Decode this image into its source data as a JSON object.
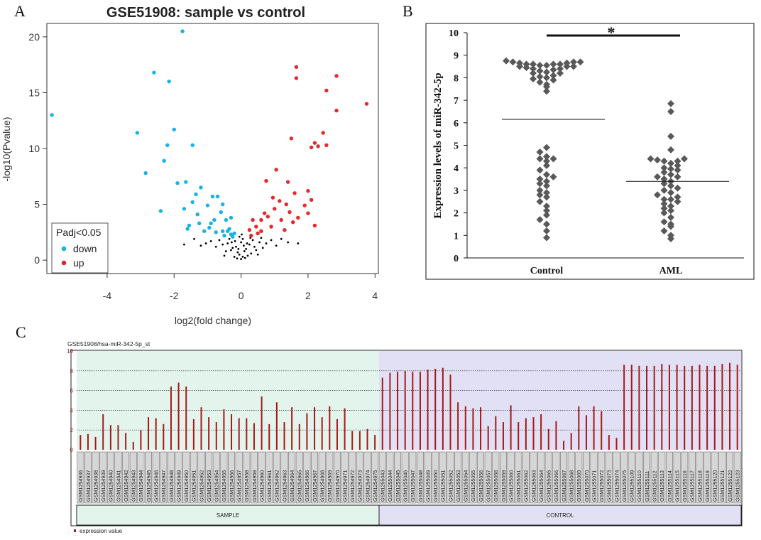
{
  "panels": {
    "a": "A",
    "b": "B",
    "c": "C"
  },
  "colors": {
    "down": "#1ab2e6",
    "up": "#e8272a",
    "ns": "#000000",
    "diamond": "#595959",
    "bar": "#a51919",
    "sample_bg": "#e3f4ed",
    "control_bg": "#e2e0f4"
  },
  "chart_data": [
    {
      "id": "volcano",
      "type": "scatter",
      "title": "GSE51908: sample vs control",
      "xlabel": "log2(fold change)",
      "ylabel": "-log10(Pvalue)",
      "xlim": [
        -5.8,
        4.1
      ],
      "ylim": [
        -1.2,
        21.2
      ],
      "xticks": [
        -4,
        -2,
        0,
        2,
        4
      ],
      "yticks": [
        0,
        5,
        10,
        15,
        20
      ],
      "legend": {
        "title": "Padj<0.05",
        "entries": [
          "down",
          "up"
        ],
        "position": "bottom-left"
      },
      "series": [
        {
          "name": "down",
          "points": [
            [
              -5.65,
              13.0
            ],
            [
              -1.75,
              20.5
            ],
            [
              -2.6,
              16.8
            ],
            [
              -2.15,
              16.0
            ],
            [
              -3.1,
              11.4
            ],
            [
              -2.0,
              11.7
            ],
            [
              -2.2,
              10.3
            ],
            [
              -1.45,
              10.3
            ],
            [
              -2.3,
              8.9
            ],
            [
              -2.85,
              7.8
            ],
            [
              -2.4,
              4.4
            ],
            [
              -1.9,
              6.9
            ],
            [
              -1.65,
              7.0
            ],
            [
              -1.35,
              5.9
            ],
            [
              -1.2,
              6.5
            ],
            [
              -1.0,
              4.9
            ],
            [
              -0.85,
              5.7
            ],
            [
              -0.7,
              5.7
            ],
            [
              -0.55,
              5.0
            ],
            [
              -0.9,
              3.3
            ],
            [
              -0.55,
              2.6
            ],
            [
              -0.5,
              2.2
            ],
            [
              -0.35,
              2.8
            ],
            [
              -0.3,
              2.3
            ],
            [
              -1.7,
              4.6
            ],
            [
              -1.55,
              3.1
            ],
            [
              -1.3,
              4.1
            ],
            [
              -1.1,
              2.6
            ],
            [
              -0.75,
              2.5
            ],
            [
              -0.45,
              3.6
            ],
            [
              -0.3,
              3.8
            ],
            [
              -1.6,
              2.8
            ],
            [
              -0.6,
              4.3
            ],
            [
              -0.95,
              2.9
            ],
            [
              -0.4,
              2.6
            ],
            [
              -1.25,
              3.3
            ],
            [
              -0.8,
              3.6
            ],
            [
              -0.25,
              2.1
            ],
            [
              -0.2,
              2.4
            ],
            [
              -1.45,
              5.2
            ]
          ]
        },
        {
          "name": "up",
          "points": [
            [
              3.75,
              14.0
            ],
            [
              1.65,
              17.3
            ],
            [
              2.85,
              16.5
            ],
            [
              2.55,
              15.2
            ],
            [
              1.65,
              16.3
            ],
            [
              2.85,
              13.4
            ],
            [
              2.2,
              10.5
            ],
            [
              2.55,
              10.3
            ],
            [
              2.3,
              10.2
            ],
            [
              2.1,
              10.1
            ],
            [
              2.45,
              11.4
            ],
            [
              1.5,
              10.9
            ],
            [
              1.05,
              8.1
            ],
            [
              1.4,
              7.0
            ],
            [
              0.75,
              7.1
            ],
            [
              1.6,
              6.0
            ],
            [
              0.95,
              5.6
            ],
            [
              1.35,
              5.0
            ],
            [
              2.0,
              6.2
            ],
            [
              0.3,
              2.2
            ],
            [
              0.45,
              3.0
            ],
            [
              0.6,
              2.6
            ],
            [
              0.8,
              3.9
            ],
            [
              1.0,
              4.6
            ],
            [
              1.2,
              3.6
            ],
            [
              1.45,
              4.3
            ],
            [
              1.7,
              3.8
            ],
            [
              1.9,
              4.9
            ],
            [
              2.1,
              5.4
            ],
            [
              2.2,
              3.1
            ],
            [
              1.55,
              3.4
            ],
            [
              0.35,
              3.6
            ],
            [
              0.5,
              2.4
            ],
            [
              0.7,
              4.2
            ],
            [
              0.9,
              3.0
            ],
            [
              1.3,
              2.7
            ],
            [
              0.25,
              2.7
            ],
            [
              0.6,
              3.6
            ],
            [
              2.0,
              4.2
            ],
            [
              1.15,
              5.3
            ]
          ]
        },
        {
          "name": "not significant",
          "points": [
            [
              0.0,
              0.1
            ],
            [
              0.05,
              0.3
            ],
            [
              -0.05,
              0.5
            ],
            [
              0.1,
              0.8
            ],
            [
              -0.1,
              0.7
            ],
            [
              0.15,
              1.0
            ],
            [
              -0.15,
              1.2
            ],
            [
              0.2,
              0.4
            ],
            [
              -0.2,
              0.3
            ],
            [
              0.25,
              1.4
            ],
            [
              -0.25,
              1.1
            ],
            [
              0.3,
              0.6
            ],
            [
              -0.3,
              0.9
            ],
            [
              0.0,
              1.6
            ],
            [
              0.05,
              1.9
            ],
            [
              -0.05,
              2.1
            ],
            [
              0.4,
              1.2
            ],
            [
              -0.4,
              1.5
            ],
            [
              0.45,
              0.9
            ],
            [
              -0.45,
              0.8
            ],
            [
              0.55,
              1.6
            ],
            [
              -0.55,
              1.4
            ],
            [
              0.6,
              2.0
            ],
            [
              -0.65,
              1.8
            ],
            [
              0.75,
              1.5
            ],
            [
              -0.75,
              1.2
            ],
            [
              0.9,
              1.8
            ],
            [
              -0.9,
              1.7
            ],
            [
              1.05,
              1.3
            ],
            [
              -1.05,
              1.5
            ],
            [
              1.2,
              1.9
            ],
            [
              -1.2,
              1.3
            ],
            [
              1.4,
              1.6
            ],
            [
              -1.4,
              1.9
            ],
            [
              1.7,
              1.5
            ],
            [
              -1.7,
              1.4
            ],
            [
              0.12,
              0.2
            ],
            [
              -0.12,
              0.15
            ],
            [
              0.08,
              1.3
            ],
            [
              -0.08,
              1.0
            ],
            [
              0.35,
              1.8
            ],
            [
              -0.35,
              1.9
            ],
            [
              0.18,
              1.5
            ],
            [
              -0.18,
              1.7
            ],
            [
              0.5,
              0.5
            ],
            [
              -0.5,
              0.4
            ],
            [
              0.02,
              2.3
            ],
            [
              0.28,
              2.0
            ],
            [
              -0.28,
              1.6
            ],
            [
              0.65,
              1.1
            ]
          ]
        }
      ]
    },
    {
      "id": "dotplot",
      "type": "scatter",
      "categories": [
        "Control",
        "AML"
      ],
      "ylabel": "Expression levels of miR-342-5p",
      "ylim": [
        0,
        10
      ],
      "yticks": [
        0,
        1,
        2,
        3,
        4,
        5,
        6,
        7,
        8,
        9,
        10
      ],
      "significance": "*",
      "mean_lines": [
        6.15,
        3.4
      ],
      "series": [
        {
          "name": "Control",
          "values": [
            8.7,
            8.6,
            8.75,
            8.5,
            8.65,
            8.4,
            8.55,
            8.7,
            8.6,
            8.45,
            8.3,
            8.2,
            8.5,
            8.6,
            8.7,
            8.55,
            8.65,
            8.35,
            8.25,
            8.0,
            7.9,
            8.1,
            7.8,
            7.6,
            7.4,
            7.7,
            8.05,
            7.95,
            8.4,
            8.5,
            8.6,
            8.2,
            4.9,
            4.7,
            4.5,
            4.4,
            4.3,
            4.4,
            4.1,
            3.9,
            3.7,
            3.5,
            3.4,
            3.2,
            3.0,
            2.9,
            2.7,
            2.5,
            2.3,
            2.1,
            1.9,
            1.7,
            1.5,
            1.2,
            0.9,
            3.3,
            3.6,
            2.8
          ]
        },
        {
          "name": "AML",
          "values": [
            6.85,
            6.5,
            5.4,
            4.8,
            4.4,
            4.3,
            4.3,
            4.2,
            4.1,
            4.0,
            4.4,
            3.9,
            3.8,
            3.7,
            3.6,
            3.5,
            3.4,
            3.3,
            3.2,
            3.1,
            3.0,
            2.9,
            2.8,
            2.7,
            2.6,
            2.5,
            2.4,
            2.3,
            2.2,
            2.1,
            2.0,
            1.8,
            1.6,
            1.5,
            1.4,
            1.2,
            1.0,
            0.85,
            3.6,
            2.6,
            3.95,
            4.35
          ]
        }
      ]
    },
    {
      "id": "barplot",
      "type": "bar",
      "title": "GSE51908/hsa-miR-342-5p_st",
      "ylim": [
        0,
        10
      ],
      "yticks": [
        0,
        2,
        4,
        6,
        8,
        10
      ],
      "legend": "expression value",
      "groups": [
        {
          "label": "SAMPLE",
          "count": 40
        },
        {
          "label": "CONTROL",
          "count": 48
        }
      ],
      "categories": [
        "GSM1254936",
        "GSM1254937",
        "GSM1254938",
        "GSM1254939",
        "GSM1254940",
        "GSM1254941",
        "GSM1254942",
        "GSM1254943",
        "GSM1254944",
        "GSM1254945",
        "GSM1254946",
        "GSM1254947",
        "GSM1254948",
        "GSM1254949",
        "GSM1254950",
        "GSM1254951",
        "GSM1254952",
        "GSM1254953",
        "GSM1254954",
        "GSM1254955",
        "GSM1254956",
        "GSM1254957",
        "GSM1254958",
        "GSM1254959",
        "GSM1254960",
        "GSM1254961",
        "GSM1254962",
        "GSM1254963",
        "GSM1254964",
        "GSM1254965",
        "GSM1254966",
        "GSM1254967",
        "GSM1254968",
        "GSM1254969",
        "GSM1254970",
        "GSM1254971",
        "GSM1254972",
        "GSM1254973",
        "GSM1254974",
        "GSM1254975",
        "GSM1255043",
        "GSM1255044",
        "GSM1255045",
        "GSM1255046",
        "GSM1255047",
        "GSM1255048",
        "GSM1255049",
        "GSM1255050",
        "GSM1255051",
        "GSM1255052",
        "GSM1255053",
        "GSM1255054",
        "GSM1255055",
        "GSM1255056",
        "GSM1255057",
        "GSM1255058",
        "GSM1255059",
        "GSM1255060",
        "GSM1255061",
        "GSM1255062",
        "GSM1255063",
        "GSM1255064",
        "GSM1255065",
        "GSM1255066",
        "GSM1255067",
        "GSM1255068",
        "GSM1255069",
        "GSM1255070",
        "GSM1255071",
        "GSM1255072",
        "GSM1255073",
        "GSM1255074",
        "GSM1255075",
        "GSM1255109",
        "GSM1255110",
        "GSM1255111",
        "GSM1255112",
        "GSM1255113",
        "GSM1255114",
        "GSM1255115",
        "GSM1255116",
        "GSM1255117",
        "GSM1255118",
        "GSM1255119",
        "GSM1255120",
        "GSM1255121",
        "GSM1255122",
        "GSM1255123"
      ],
      "values": [
        1.5,
        1.6,
        1.3,
        3.6,
        2.5,
        2.5,
        1.7,
        0.8,
        2.0,
        3.3,
        3.2,
        2.6,
        6.4,
        6.8,
        6.4,
        3.1,
        4.3,
        3.3,
        2.8,
        4.1,
        3.6,
        3.2,
        3.2,
        2.7,
        5.4,
        2.6,
        4.8,
        2.8,
        4.3,
        2.6,
        3.7,
        4.3,
        3.3,
        4.4,
        3.1,
        4.2,
        1.9,
        1.9,
        2.1,
        1.5,
        7.3,
        7.8,
        7.9,
        8.0,
        7.9,
        7.9,
        8.1,
        8.2,
        8.3,
        7.6,
        4.8,
        4.4,
        4.2,
        4.3,
        2.4,
        3.4,
        2.8,
        4.5,
        2.8,
        3.2,
        3.3,
        3.6,
        2.1,
        2.9,
        0.9,
        1.7,
        4.4,
        3.5,
        4.4,
        3.9,
        1.5,
        1.2,
        8.6,
        8.6,
        8.5,
        8.5,
        8.5,
        8.7,
        8.6,
        8.6,
        8.5,
        8.5,
        8.6,
        8.5,
        8.5,
        8.7,
        8.8,
        8.6
      ]
    }
  ]
}
